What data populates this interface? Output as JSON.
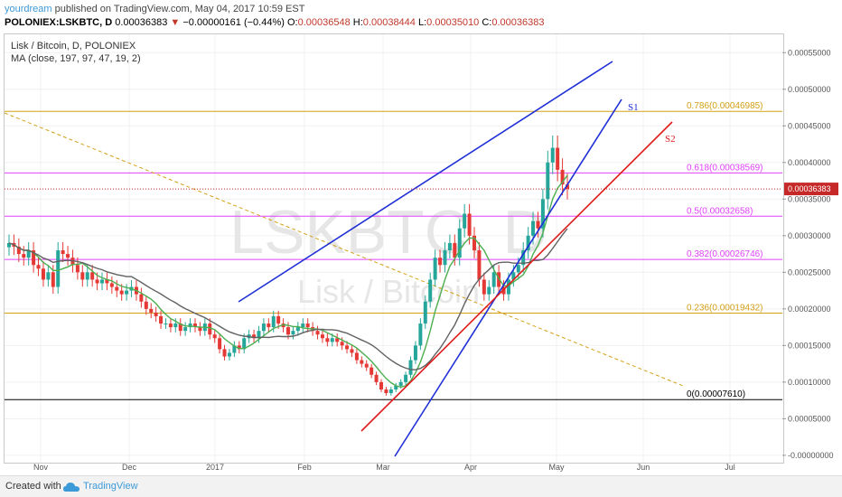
{
  "header": {
    "author": "yourdream",
    "published_text": "published on TradingView.com, May 04, 2017 10:59 EST",
    "symbol": "POLONIEX:LSKBTC, D",
    "last": "0.00036383",
    "change_arrow": "▼",
    "change": "−0.00000161 (−0.44%)",
    "o_label": "O:",
    "o": "0.00036548",
    "h_label": "H:",
    "h": "0.00038444",
    "l_label": "L:",
    "l": "0.00035010",
    "c_label": "C:",
    "c": "0.00036383"
  },
  "chart_header": {
    "title": "Lisk / Bitcoin, D, POLONIEX",
    "indicator": "MA (close, 197, 97, 47, 19, 2)"
  },
  "watermark": {
    "symbol": "LSKBTC, D",
    "name": "Lisk / Bitcoin"
  },
  "footer": {
    "created_with": "Created with",
    "brand": "TradingView"
  },
  "colors": {
    "up_candle": "#26a69a",
    "down_candle": "#e53935",
    "ma_green": "#4caf50",
    "ma_dark": "#616161",
    "fib_gold": "#d4a017",
    "fib_magenta": "#e040fb",
    "trend_blue": "#1f2fd6",
    "trend_red": "#e01b1b",
    "price_tag": "#c62828"
  },
  "chart_data": {
    "type": "candlestick",
    "title": "Lisk / Bitcoin, D, POLONIEX",
    "xlabel": "",
    "ylabel": "",
    "ylim": [
      -1e-05,
      0.000575
    ],
    "x_ticks": [
      "Nov",
      "Dec",
      "2017",
      "Feb",
      "Mar",
      "Apr",
      "May",
      "Jun",
      "Jul"
    ],
    "y_ticks": [
      "-0.00000000",
      "0.00005000",
      "0.00010000",
      "0.00015000",
      "0.00020000",
      "0.00025000",
      "0.00030000",
      "0.00035000",
      "0.00040000",
      "0.00045000",
      "0.00050000",
      "0.00055000"
    ],
    "last_price_label": "0.00036383",
    "last_price": 0.00036383,
    "fib_levels": [
      {
        "label": "0(0.00007610)",
        "value": 7.61e-05
      },
      {
        "label": "0.236(0.00019432)",
        "value": 0.00019432
      },
      {
        "label": "0.382(0.00026746)",
        "value": 0.00026746
      },
      {
        "label": "0.5(0.00032658)",
        "value": 0.00032658
      },
      {
        "label": "0.618(0.00038569)",
        "value": 0.00038569
      },
      {
        "label": "0.786(0.00046985)",
        "value": 0.00046985
      }
    ],
    "trend_labels": [
      "S1",
      "S2"
    ],
    "ohlc_close_series": [
      0.00029,
      0.000285,
      0.000275,
      0.00027,
      0.00028,
      0.00026,
      0.000255,
      0.00024,
      0.00025,
      0.00023,
      0.00028,
      0.000275,
      0.00027,
      0.00026,
      0.00025,
      0.00024,
      0.00025,
      0.00024,
      0.000235,
      0.00024,
      0.000235,
      0.00023,
      0.000225,
      0.00022,
      0.000225,
      0.00023,
      0.00022,
      0.00021,
      0.0002,
      0.000195,
      0.00019,
      0.00018,
      0.00018,
      0.000175,
      0.00018,
      0.00017,
      0.000175,
      0.00018,
      0.000175,
      0.00017,
      0.00018,
      0.000165,
      0.00016,
      0.000145,
      0.000135,
      0.00014,
      0.00015,
      0.000145,
      0.00016,
      0.000165,
      0.00016,
      0.00017,
      0.00018,
      0.000175,
      0.00019,
      0.00018,
      0.000175,
      0.000165,
      0.00017,
      0.000175,
      0.00018,
      0.000175,
      0.00017,
      0.000165,
      0.00016,
      0.000155,
      0.00016,
      0.000155,
      0.00015,
      0.000145,
      0.00014,
      0.00013,
      0.000125,
      0.00012,
      0.00011,
      0.0001,
      9e-05,
      8.5e-05,
      9e-05,
      9.5e-05,
      0.0001,
      0.00011,
      0.00013,
      0.00015,
      0.00018,
      0.00021,
      0.00024,
      0.00027,
      0.00026,
      0.00028,
      0.00029,
      0.00027,
      0.00031,
      0.00033,
      0.0003,
      0.00028,
      0.00024,
      0.00022,
      0.00023,
      0.00025,
      0.00023,
      0.00022,
      0.00024,
      0.00025,
      0.00026,
      0.00028,
      0.0003,
      0.00032,
      0.00031,
      0.00035,
      0.0004,
      0.00042,
      0.00039,
      0.00037,
      0.000364
    ]
  }
}
